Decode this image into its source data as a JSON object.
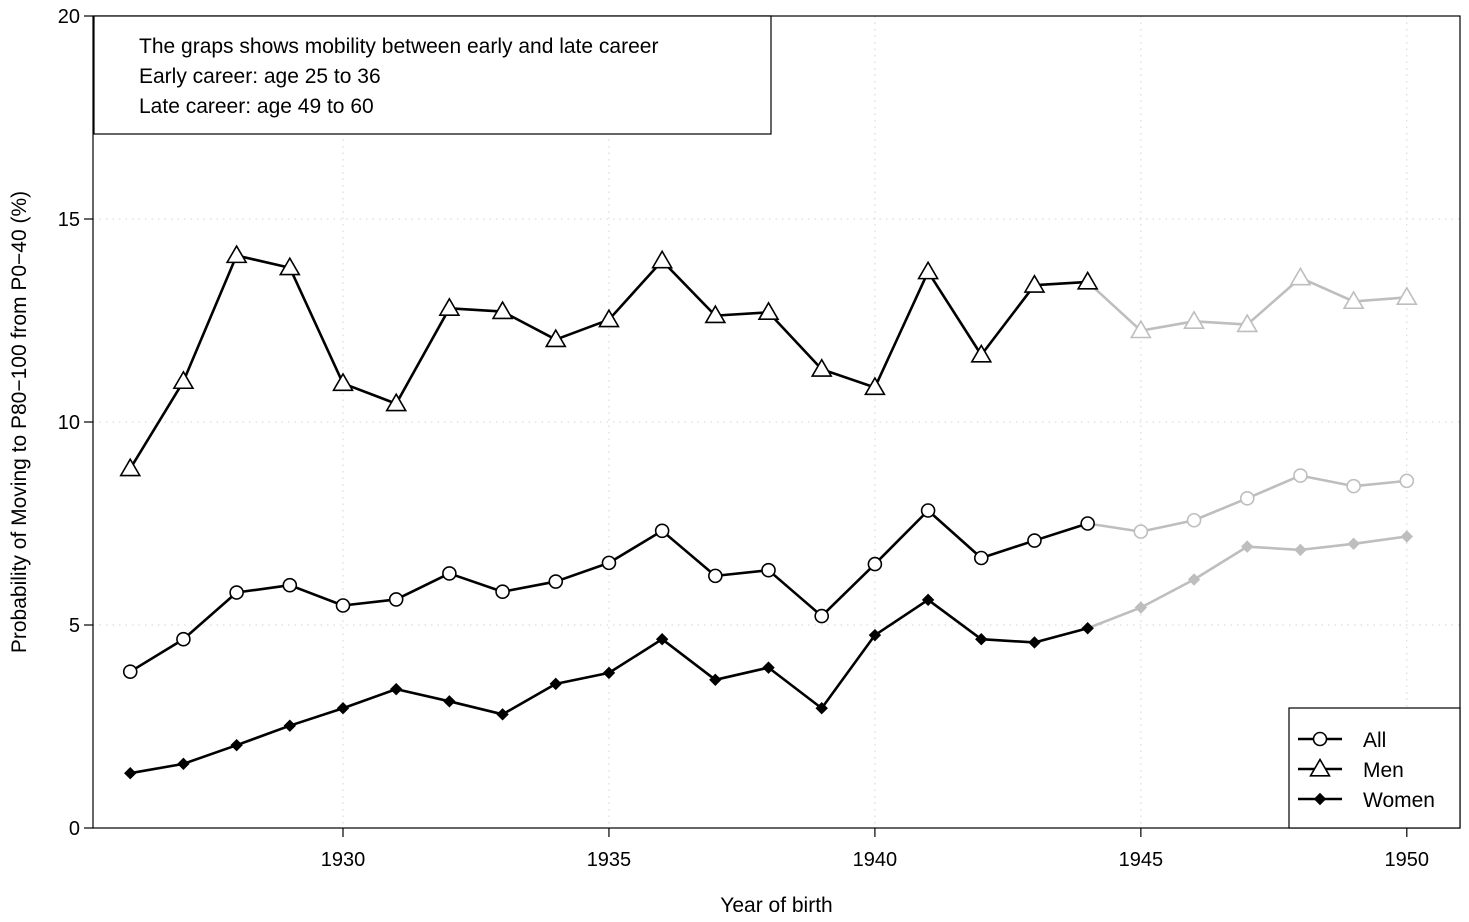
{
  "chart_data": {
    "type": "line",
    "xlabel": "Year of birth",
    "ylabel": "Probability of Moving to P80−100 from P0−40 (%)",
    "xlim": [
      1925.3,
      1951.0
    ],
    "ylim": [
      0,
      20
    ],
    "xticks": [
      "1930",
      "1935",
      "1940",
      "1945",
      "1950"
    ],
    "yticks": [
      "0",
      "5",
      "10",
      "15",
      "20"
    ],
    "grid": true,
    "legend_position": "bottom-right",
    "note": [
      "The graps shows mobility between early and late career",
      "Early career: age 25 to 36",
      "Late career: age 49 to 60"
    ],
    "colors": {
      "solid": "#000000",
      "faded": "#bebebe",
      "grid": "#d3d3d3"
    },
    "split_year": 1944,
    "x": [
      1926,
      1927,
      1928,
      1929,
      1930,
      1931,
      1932,
      1933,
      1934,
      1935,
      1936,
      1937,
      1938,
      1939,
      1940,
      1941,
      1942,
      1943,
      1944,
      1945,
      1946,
      1947,
      1948,
      1949,
      1950
    ],
    "series": [
      {
        "name": "All",
        "marker": "circle",
        "values": [
          3.85,
          4.65,
          5.8,
          5.98,
          5.48,
          5.63,
          6.27,
          5.82,
          6.07,
          6.53,
          7.32,
          6.21,
          6.35,
          5.22,
          6.5,
          7.82,
          6.65,
          7.08,
          7.5,
          7.3,
          7.58,
          8.12,
          8.68,
          8.42,
          8.55
        ]
      },
      {
        "name": "Men",
        "marker": "triangle",
        "values": [
          8.85,
          11.0,
          14.1,
          13.8,
          10.95,
          10.45,
          12.8,
          12.72,
          12.03,
          12.52,
          13.97,
          12.62,
          12.7,
          11.3,
          10.85,
          13.7,
          11.65,
          13.37,
          13.45,
          12.25,
          12.48,
          12.4,
          13.55,
          12.97,
          13.07
        ]
      },
      {
        "name": "Women",
        "marker": "diamond",
        "values": [
          1.35,
          1.58,
          2.04,
          2.52,
          2.95,
          3.42,
          3.12,
          2.8,
          3.55,
          3.82,
          4.65,
          3.65,
          3.95,
          2.95,
          4.75,
          5.62,
          4.65,
          4.57,
          4.92,
          5.43,
          6.12,
          6.93,
          6.85,
          7.0,
          7.18
        ]
      }
    ]
  }
}
